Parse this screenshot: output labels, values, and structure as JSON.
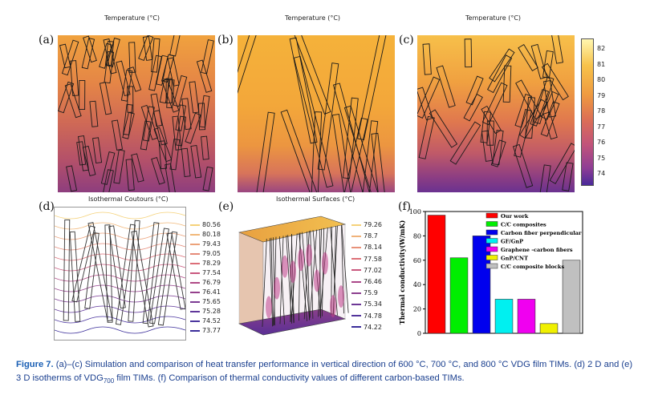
{
  "panels": {
    "a": {
      "label": "(a)",
      "title": "Temperature (°C)"
    },
    "b": {
      "label": "(b)",
      "title": "Temperature (°C)"
    },
    "c": {
      "label": "(c)",
      "title": "Temperature (°C)"
    },
    "d": {
      "label": "(d)",
      "title": "Isothermal Coutours (°C)"
    },
    "e": {
      "label": "(e)",
      "title": "Isothermal Surfaces (°C)"
    },
    "f": {
      "label": "(f)"
    }
  },
  "colorbar_top": {
    "ticks": [
      "82",
      "81",
      "80",
      "79",
      "78",
      "77",
      "76",
      "75",
      "74"
    ]
  },
  "legend_d": {
    "ticks": [
      "80.56",
      "80.18",
      "79.43",
      "79.05",
      "78.29",
      "77.54",
      "76.79",
      "76.41",
      "75.65",
      "75.28",
      "74.52",
      "73.77"
    ],
    "colors": [
      "#f5d27a",
      "#f1b87a",
      "#eca27a",
      "#e58a78",
      "#dc6e78",
      "#c9587e",
      "#b04a86",
      "#95408c",
      "#7b3a93",
      "#60369a",
      "#4a349e",
      "#3a2d9a"
    ]
  },
  "legend_e": {
    "ticks": [
      "79.26",
      "78.7",
      "78.14",
      "77.58",
      "77.02",
      "76.46",
      "75.9",
      "75.34",
      "74.78",
      "74.22"
    ],
    "colors": [
      "#f5d27a",
      "#f0b37a",
      "#e8927a",
      "#dd7078",
      "#c9587e",
      "#ab4788",
      "#8c3f8f",
      "#6d3896",
      "#53349c",
      "#3a2d9a"
    ]
  },
  "chart_data": {
    "type": "bar",
    "ylabel": "Thermal conductivity(W/mK)",
    "ylim": [
      0,
      100
    ],
    "yticks": [
      "0",
      "20",
      "40",
      "60",
      "80",
      "100"
    ],
    "series": [
      {
        "name": "Our work",
        "value": 97,
        "color": "#ff0000"
      },
      {
        "name": "C/C composites",
        "value": 62,
        "color": "#00ee00"
      },
      {
        "name": "Carbon fiber perpendicular",
        "value": 80,
        "color": "#0000ee"
      },
      {
        "name": "GF/GnP",
        "value": 28,
        "color": "#00f0f0"
      },
      {
        "name": "Graphene -carbon fibers",
        "value": 28,
        "color": "#f000f0"
      },
      {
        "name": "GnP/CNT",
        "value": 8,
        "color": "#f0f000"
      },
      {
        "name": "C/C composite blocks",
        "value": 60,
        "color": "#c0c0c0"
      }
    ]
  },
  "caption": {
    "figure_label": "Figure 7.",
    "text_1": "(a)–(c) Simulation and comparison of heat transfer performance in vertical direction of 600 °C, 700 °C, and 800 °C VDG film TIMs. (d) 2 D and (e) 3 D isotherms of VDG",
    "subscript": "700",
    "text_2": " film TIMs. (f) Comparison of thermal conductivity values of different carbon-based TIMs."
  }
}
